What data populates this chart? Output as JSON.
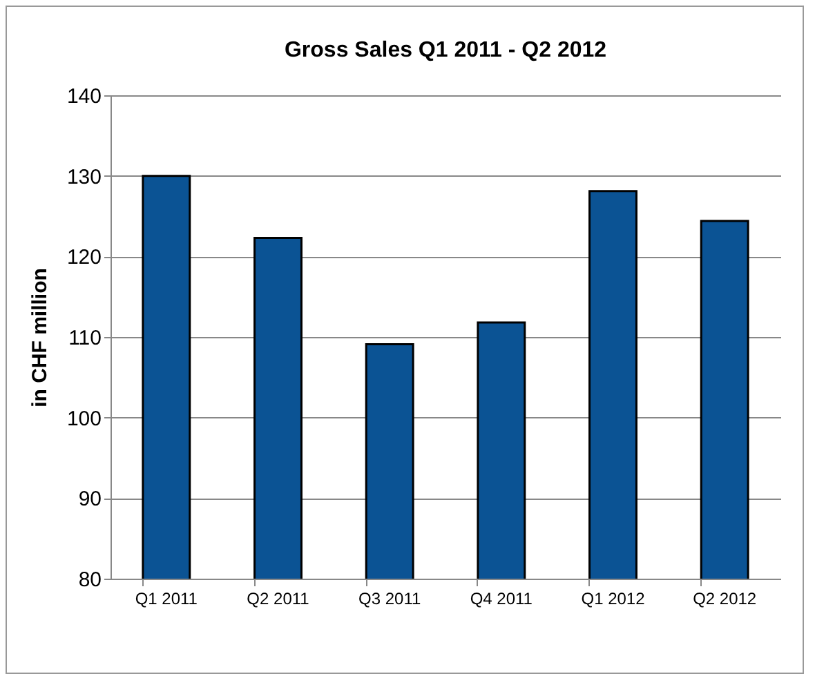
{
  "chart_data": {
    "type": "bar",
    "title": "Gross Sales Q1 2011 - Q2 2012",
    "ylabel": "in CHF million",
    "categories": [
      "Q1 2011",
      "Q2 2011",
      "Q3 2011",
      "Q4 2011",
      "Q1 2012",
      "Q2 2012"
    ],
    "values": [
      130,
      122.3,
      109.1,
      111.8,
      128.1,
      124.4
    ],
    "color": "#0b5394",
    "ylim": [
      80,
      140
    ],
    "yticks": [
      80,
      90,
      100,
      110,
      120,
      130,
      140
    ],
    "grid": "y"
  }
}
